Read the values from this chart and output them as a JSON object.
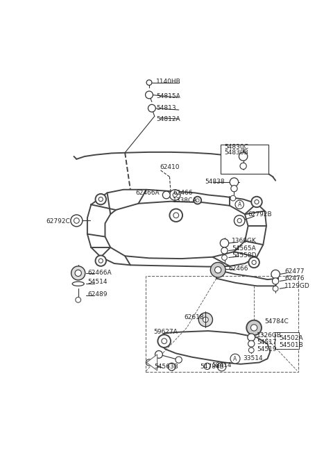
{
  "bg_color": "#ffffff",
  "line_color": "#333333",
  "frame_color": "#444444",
  "font_size": 6.5,
  "fig_w": 4.8,
  "fig_h": 6.56,
  "dpi": 100,
  "xlim": [
    0,
    480
  ],
  "ylim": [
    0,
    656
  ]
}
